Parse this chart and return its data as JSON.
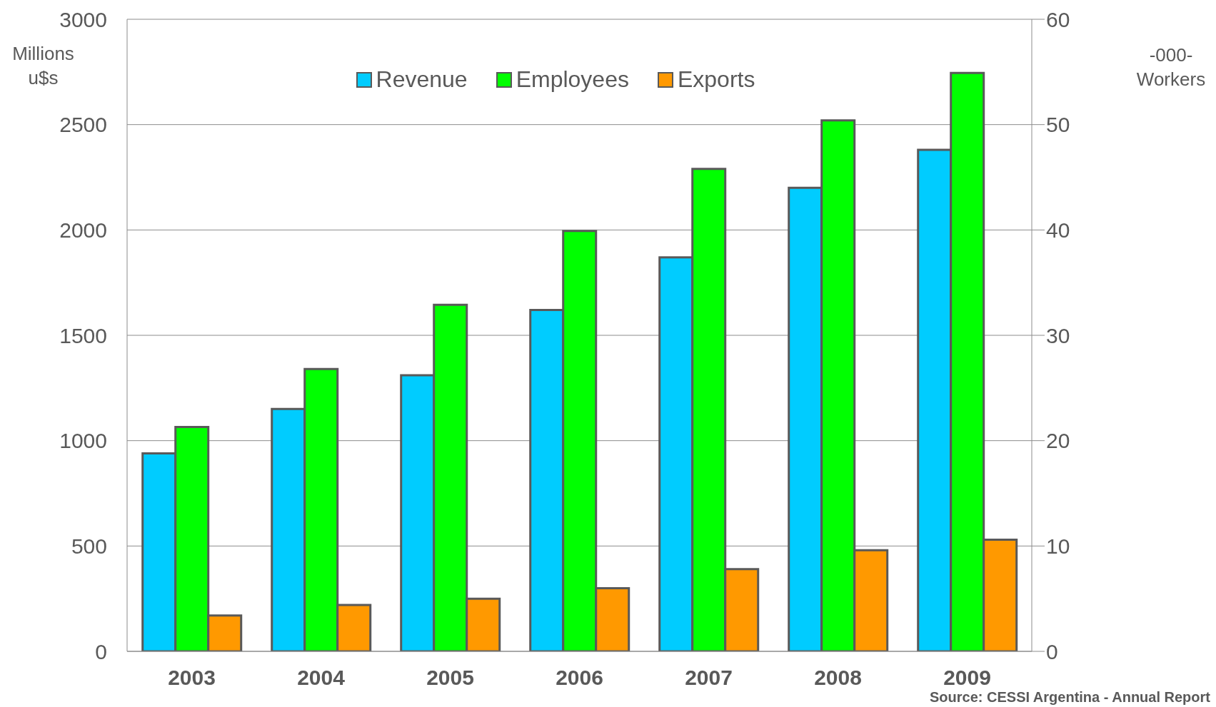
{
  "chart_data": {
    "type": "bar",
    "categories": [
      "2003",
      "2004",
      "2005",
      "2006",
      "2007",
      "2008",
      "2009"
    ],
    "series": [
      {
        "name": "Revenue",
        "color": "#00ccff",
        "values": [
          940,
          1150,
          1310,
          1620,
          1870,
          2200,
          2380
        ]
      },
      {
        "name": "Employees",
        "color": "#00ff00",
        "axis": "y2",
        "values": [
          21.3,
          26.8,
          32.9,
          39.9,
          45.8,
          50.4,
          54.9
        ]
      },
      {
        "name": "Exports",
        "color": "#ff9900",
        "values": [
          170,
          220,
          250,
          300,
          390,
          480,
          530
        ]
      }
    ],
    "ylabel": "Millions u$s",
    "y2label": "-000- Workers",
    "ylim": [
      0,
      3000
    ],
    "yticks": [
      0,
      500,
      1000,
      1500,
      2000,
      2500,
      3000
    ],
    "y2lim": [
      0,
      60
    ],
    "y2ticks": [
      0,
      10,
      20,
      30,
      40,
      50,
      60
    ],
    "grid": "y",
    "legend": "top",
    "annotations": [
      "Source: CESSI Argentina - Annual Report"
    ]
  }
}
